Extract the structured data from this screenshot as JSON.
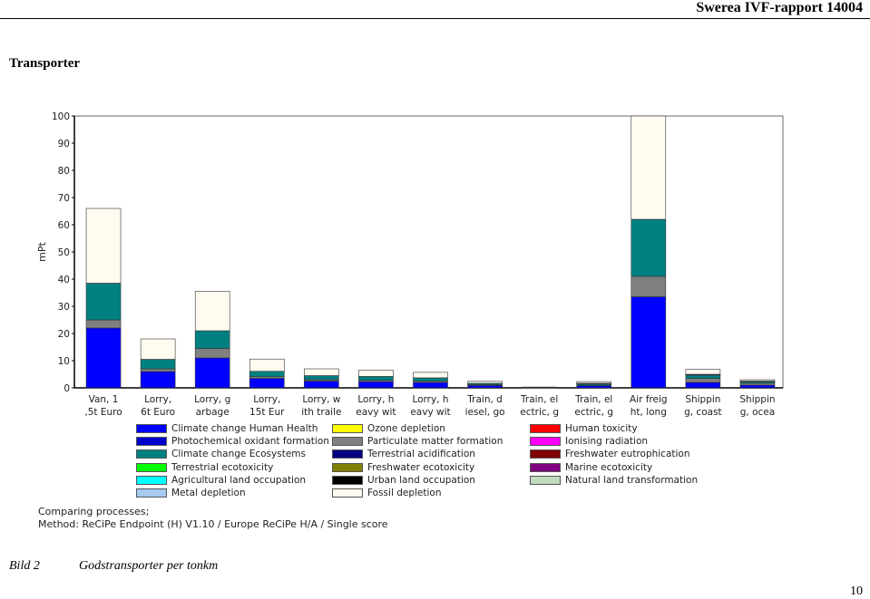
{
  "header": {
    "report": "Swerea IVF-rapport 14004"
  },
  "section": {
    "title": "Transporter"
  },
  "caption": {
    "label": "Bild 2",
    "text": "Godstransporter per tonkm"
  },
  "page_number": "10",
  "method_note": {
    "line1": "Comparing processes;",
    "line2": "Method: ReCiPe Endpoint (H) V1.10 / Europe ReCiPe H/A / Single score"
  },
  "legend": [
    {
      "name": "Climate change Human Health",
      "color": "#0000ff"
    },
    {
      "name": "Photochemical oxidant formation",
      "color": "#0000cc"
    },
    {
      "name": "Climate change Ecosystems",
      "color": "#008080"
    },
    {
      "name": "Terrestrial ecotoxicity",
      "color": "#00ff00"
    },
    {
      "name": "Agricultural land occupation",
      "color": "#00ffff"
    },
    {
      "name": "Metal depletion",
      "color": "#a6caf0"
    },
    {
      "name": "Ozone depletion",
      "color": "#ffff00"
    },
    {
      "name": "Particulate matter formation",
      "color": "#808080"
    },
    {
      "name": "Terrestrial acidification",
      "color": "#000080"
    },
    {
      "name": "Freshwater ecotoxicity",
      "color": "#808000"
    },
    {
      "name": "Urban land occupation",
      "color": "#000000"
    },
    {
      "name": "Fossil depletion",
      "color": "#fffbf0"
    },
    {
      "name": "Human toxicity",
      "color": "#ff0000"
    },
    {
      "name": "Ionising radiation",
      "color": "#ff00ff"
    },
    {
      "name": "Freshwater eutrophication",
      "color": "#800000"
    },
    {
      "name": "Marine ecotoxicity",
      "color": "#800080"
    },
    {
      "name": "Natural land transformation",
      "color": "#c0dcc0"
    }
  ],
  "chart_data": {
    "type": "bar",
    "stacked": true,
    "ylabel": "mPt",
    "ylim": [
      0,
      100
    ],
    "yticks": [
      0,
      10,
      20,
      30,
      40,
      50,
      60,
      70,
      80,
      90,
      100
    ],
    "grid": false,
    "categories": [
      [
        "Van, 1",
        ",5t Euro"
      ],
      [
        "Lorry,",
        "6t Euro"
      ],
      [
        "Lorry, g",
        "arbage"
      ],
      [
        "Lorry,",
        "15t Eur"
      ],
      [
        "Lorry, w",
        "ith traile"
      ],
      [
        "Lorry, h",
        "eavy wit"
      ],
      [
        "Lorry, h",
        "eavy wit"
      ],
      [
        "Train, d",
        "iesel, go"
      ],
      [
        "Train, el",
        "ectric, g"
      ],
      [
        "Train, el",
        "ectric, g"
      ],
      [
        "Air freig",
        "ht, long"
      ],
      [
        "Shippin",
        "g, coast"
      ],
      [
        "Shippin",
        "g, ocea"
      ]
    ],
    "series": [
      {
        "name": "Climate change Human Health",
        "color": "#0000ff",
        "values": [
          22,
          6,
          11,
          3.5,
          2.5,
          2.3,
          2,
          0.9,
          0.1,
          0.8,
          33.5,
          2,
          1
        ]
      },
      {
        "name": "Particulate matter formation",
        "color": "#808080",
        "values": [
          3,
          1,
          3.5,
          0.6,
          0.5,
          0.5,
          0.5,
          0.3,
          0.05,
          0.2,
          7.5,
          1.5,
          0.7
        ]
      },
      {
        "name": "Climate change Ecosystems",
        "color": "#008080",
        "values": [
          13.5,
          3.5,
          6.5,
          2,
          1.5,
          1.4,
          1.2,
          0.5,
          0.05,
          0.5,
          21,
          1.2,
          0.6
        ]
      },
      {
        "name": "Marine ecotoxicity",
        "color": "#800080",
        "values": [
          0,
          0,
          0,
          0,
          0,
          0,
          0,
          0,
          0,
          0.2,
          0,
          0.3,
          0.2
        ]
      },
      {
        "name": "Fossil depletion",
        "color": "#fffbf0",
        "values": [
          27.5,
          7.5,
          14.5,
          4.5,
          2.5,
          2.3,
          2,
          0.7,
          0.1,
          0.6,
          38,
          1.8,
          0.5
        ]
      }
    ]
  }
}
